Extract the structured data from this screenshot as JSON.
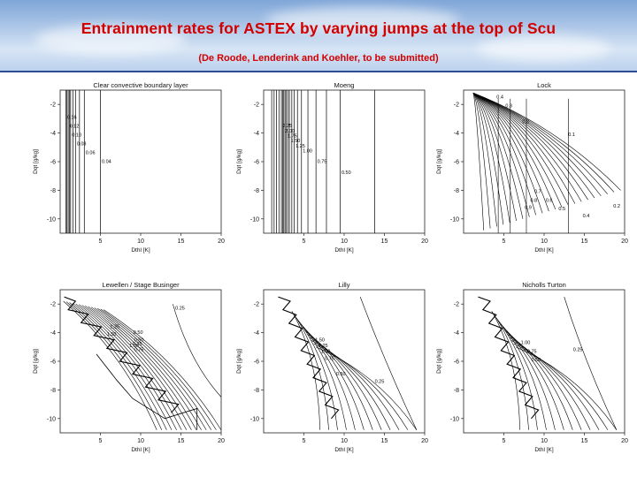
{
  "header": {
    "title": "Entrainment rates for ASTEX by varying jumps at the top of Scu",
    "subtitle": "(De Roode, Lenderink and Koehler, to be submitted)"
  },
  "colors": {
    "title": "#d40000",
    "line": "#000000",
    "banner_border": "#2a4f8c"
  },
  "chart_data": [
    {
      "type": "line",
      "title": "Clear convective boundary layer",
      "xlabel": "Dthl [K]",
      "ylabel": "Dqt [g/kg]",
      "xlim": [
        0,
        20
      ],
      "ylim": [
        -11,
        -1
      ],
      "xticks": [
        5,
        10,
        15,
        20
      ],
      "yticks": [
        -2,
        -4,
        -6,
        -8,
        -10
      ],
      "contours": [
        {
          "label": "0.16",
          "x": 0.7
        },
        {
          "label": "0.12",
          "x": 1.0
        },
        {
          "label": "0.10",
          "x": 1.3
        },
        {
          "label": "0.08",
          "x": 1.9
        },
        {
          "label": "0.06",
          "x": 3.0
        },
        {
          "label": "0.04",
          "x": 5.0
        }
      ],
      "extra_lines_x": [
        0.85,
        1.15,
        1.6,
        2.4
      ]
    },
    {
      "type": "line",
      "title": "Moeng",
      "xlabel": "Dthl [K]",
      "ylabel": "Dqt [g/kg]",
      "xlim": [
        0,
        20
      ],
      "ylim": [
        -11,
        -1
      ],
      "xticks": [
        5,
        10,
        15,
        20
      ],
      "yticks": [
        -2,
        -4,
        -6,
        -8,
        -10
      ],
      "contours": [
        {
          "label": "2.25",
          "x": 2.2
        },
        {
          "label": "2.00",
          "x": 2.5
        },
        {
          "label": "1.75",
          "x": 2.8
        },
        {
          "label": "1.50",
          "x": 3.2
        },
        {
          "label": "1.25",
          "x": 3.8
        },
        {
          "label": "1.00",
          "x": 4.7
        },
        {
          "label": "0.75",
          "x": 6.5
        },
        {
          "label": "0.50",
          "x": 9.5
        }
      ],
      "extra_lines_x": [
        1.0,
        1.3,
        1.6,
        1.9,
        2.35,
        2.65,
        3.0,
        3.5,
        4.2,
        5.5,
        7.8,
        13.8
      ]
    },
    {
      "type": "line",
      "title": "Lock",
      "xlabel": "Dthl [K]",
      "ylabel": "Dqt [g/kg]",
      "xlim": [
        0,
        20
      ],
      "ylim": [
        -11,
        -1
      ],
      "xticks": [
        5,
        10,
        15,
        20
      ],
      "yticks": [
        -2,
        -4,
        -6,
        -8,
        -10
      ],
      "contour_labels": [
        "0.4",
        "0.3",
        "0.2",
        "0.1",
        "0.7",
        "0.8",
        "0.9",
        "0.6",
        "0.5",
        "0.4",
        "0.2"
      ]
    },
    {
      "type": "line",
      "title": "Lewellen / Stage Businger",
      "xlabel": "Dthl [K]",
      "ylabel": "Dqt [g/kg]",
      "xlim": [
        0,
        20
      ],
      "ylim": [
        -11,
        -1
      ],
      "xticks": [
        5,
        10,
        15,
        20
      ],
      "yticks": [
        -2,
        -4,
        -6,
        -8,
        -10
      ],
      "contour_labels": [
        "0.25",
        "0.50",
        "0.75",
        "1.00",
        "1.25",
        "1.50",
        "0.50",
        "0.75"
      ]
    },
    {
      "type": "line",
      "title": "Lilly",
      "xlabel": "Dthl [K]",
      "ylabel": "Dqt [g/kg]",
      "xlim": [
        0,
        20
      ],
      "ylim": [
        -11,
        -1
      ],
      "xticks": [
        5,
        10,
        15,
        20
      ],
      "yticks": [
        -2,
        -4,
        -6,
        -8,
        -10
      ],
      "contour_labels": [
        "1.50",
        "1.25",
        "1.00",
        "0.75",
        "0.50",
        "0.25"
      ]
    },
    {
      "type": "line",
      "title": "Nicholls Turton",
      "xlabel": "Dthl [K]",
      "ylabel": "Dqt [g/kg]",
      "xlim": [
        0,
        20
      ],
      "ylim": [
        -11,
        -1
      ],
      "xticks": [
        5,
        10,
        15,
        20
      ],
      "yticks": [
        -2,
        -4,
        -6,
        -8,
        -10
      ],
      "contour_labels": [
        "1.00",
        "0.75",
        "0.50",
        "0.25"
      ]
    }
  ]
}
